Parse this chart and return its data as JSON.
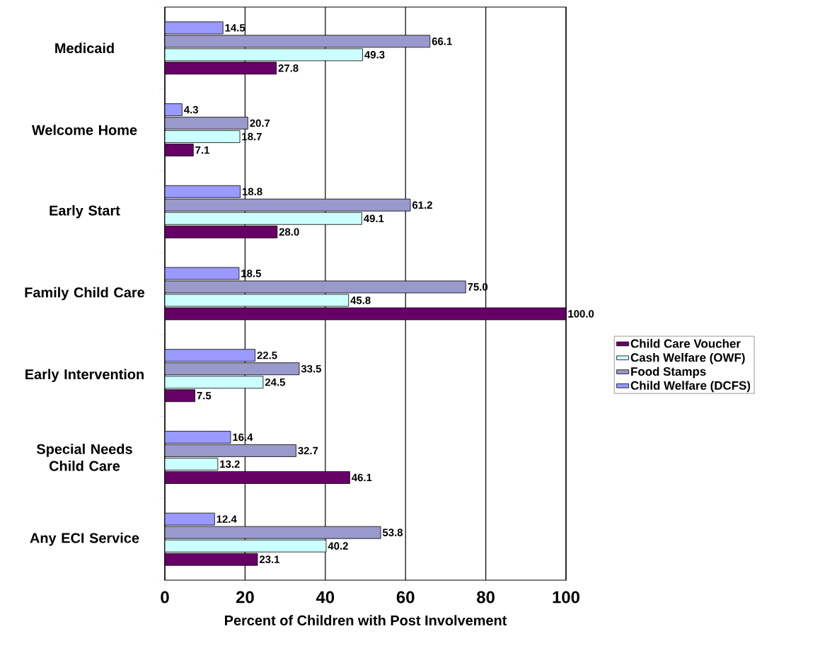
{
  "chart_data": {
    "type": "bar",
    "orientation": "horizontal",
    "xlabel": "Percent of Children with Post Involvement",
    "categories": [
      "Medicaid",
      "Welcome Home",
      "Early Start",
      "Family Child Care",
      "Early Intervention",
      "Special Needs Child Care",
      "Any ECI Service"
    ],
    "series": [
      {
        "name": "Child Care Voucher",
        "color": "#660066",
        "values": [
          27.8,
          7.1,
          28.0,
          100.0,
          7.5,
          46.1,
          23.1
        ],
        "value_labels": [
          "27.8",
          "7.1",
          "28.0",
          "100.0",
          "7.5",
          "46.1",
          "23.1"
        ]
      },
      {
        "name": "Cash Welfare (OWF)",
        "color": "#ccffff",
        "values": [
          49.3,
          18.7,
          49.1,
          45.8,
          24.5,
          13.2,
          40.2
        ],
        "value_labels": [
          "49.3",
          "18.7",
          "49.1",
          "45.8",
          "24.5",
          "13.2",
          "40.2"
        ]
      },
      {
        "name": "Food Stamps",
        "color": "#9999cc",
        "values": [
          66.1,
          20.7,
          61.2,
          75.0,
          33.5,
          32.7,
          53.8
        ],
        "value_labels": [
          "66.1",
          "20.7",
          "61.2",
          "75.0",
          "33.5",
          "32.7",
          "53.8"
        ]
      },
      {
        "name": "Child Welfare (DCFS)",
        "color": "#9999ff",
        "values": [
          14.5,
          4.3,
          18.8,
          18.5,
          22.5,
          16.4,
          12.4
        ],
        "value_labels": [
          "14.5",
          "4.3",
          "18.8",
          "18.5",
          "22.5",
          "16.4",
          "12.4"
        ]
      }
    ],
    "xlim": [
      0,
      100
    ],
    "xticks": [
      0,
      20,
      40,
      60,
      80,
      100
    ],
    "grid": "x",
    "legend": "right"
  }
}
